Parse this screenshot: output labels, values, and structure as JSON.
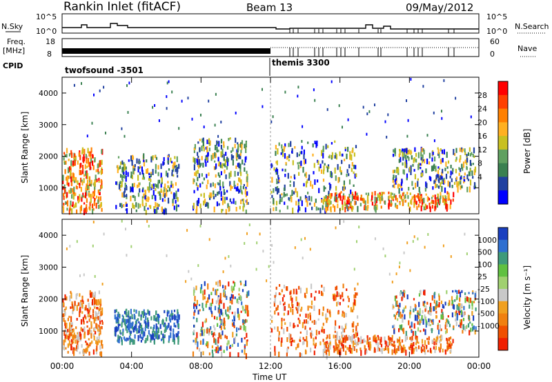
{
  "header": {
    "title": "Rankin Inlet (fitACF)",
    "beam": "Beam 13",
    "date": "09/May/2012"
  },
  "top_panels": {
    "nsky_label": "N.Sky",
    "nsky_ticks": [
      "10^5",
      "10^0"
    ],
    "nsearch_label": "N.Search",
    "nsearch_ticks": [
      "10^5",
      "10^0"
    ],
    "freq_label": "Freq.",
    "freq_unit": "[MHz]",
    "freq_ticks": [
      "18",
      "8"
    ],
    "nave_label": "Nave",
    "nave_ticks": [
      "60",
      "0"
    ],
    "cpid_label": "CPID",
    "cpid_modes": [
      "twofsound -3501",
      "themis 3300"
    ]
  },
  "colorbars": {
    "power": {
      "label": "Power [dB]",
      "ticks": [
        "28",
        "24",
        "20",
        "16",
        "12",
        "8",
        "4"
      ],
      "colors": [
        "#ff0000",
        "#ff4000",
        "#ff8000",
        "#ffb020",
        "#c8c020",
        "#60a060",
        "#3a8050",
        "#2040a0",
        "#0000ff"
      ]
    },
    "velocity": {
      "label": "Velocity [m s⁻¹]",
      "ticks": [
        "1000",
        "500",
        "100",
        "25",
        "-25",
        "-100",
        "-500",
        "-1000"
      ],
      "colors": [
        "#1a3fbf",
        "#2f6fd0",
        "#3f9a7a",
        "#60c040",
        "#a0d070",
        "#c8c8c8",
        "#f0a020",
        "#f08010",
        "#f05000",
        "#f02000"
      ]
    }
  },
  "chart_data": [
    {
      "type": "heatmap",
      "name": "power",
      "ylabel": "Slant Range [km]",
      "xlabel": "Time UT",
      "x_ticks": [
        "00:00",
        "04:00",
        "08:00",
        "12:00",
        "16:00",
        "20:00",
        "00:00"
      ],
      "y_ticks": [
        1000,
        2000,
        3000,
        4000
      ],
      "xlim_hours": [
        0,
        24
      ],
      "ylim_km": [
        180,
        4500
      ],
      "echo_regions": [
        {
          "t0": 0.0,
          "t1": 2.3,
          "r0": 300,
          "r1": 2300,
          "level": "high"
        },
        {
          "t0": 3.0,
          "t1": 6.7,
          "r0": 300,
          "r1": 2100,
          "level": "mid"
        },
        {
          "t0": 7.5,
          "t1": 10.7,
          "r0": 300,
          "r1": 2600,
          "level": "mid"
        },
        {
          "t0": 12.0,
          "t1": 17.0,
          "r0": 300,
          "r1": 2500,
          "level": "mid"
        },
        {
          "t0": 15.0,
          "t1": 22.5,
          "r0": 400,
          "r1": 900,
          "level": "high"
        },
        {
          "t0": 19.0,
          "t1": 23.8,
          "r0": 1000,
          "r1": 2300,
          "level": "mid"
        }
      ]
    },
    {
      "type": "heatmap",
      "name": "velocity",
      "ylabel": "Slant Range [km]",
      "xlabel": "Time UT",
      "x_ticks": [
        "00:00",
        "04:00",
        "08:00",
        "12:00",
        "16:00",
        "20:00",
        "00:00"
      ],
      "y_ticks": [
        1000,
        2000,
        3000,
        4000
      ],
      "xlim_hours": [
        0,
        24
      ],
      "ylim_km": [
        180,
        4500
      ],
      "echo_regions": [
        {
          "t0": 0.0,
          "t1": 2.3,
          "r0": 300,
          "r1": 2300,
          "level": "neg"
        },
        {
          "t0": 3.0,
          "t1": 6.7,
          "r0": 700,
          "r1": 1700,
          "level": "pos"
        },
        {
          "t0": 7.5,
          "t1": 10.7,
          "r0": 300,
          "r1": 2600,
          "level": "mixed"
        },
        {
          "t0": 12.0,
          "t1": 17.0,
          "r0": 300,
          "r1": 2500,
          "level": "neg"
        },
        {
          "t0": 15.0,
          "t1": 22.5,
          "r0": 400,
          "r1": 900,
          "level": "neg"
        },
        {
          "t0": 19.0,
          "t1": 23.8,
          "r0": 1000,
          "r1": 2300,
          "level": "mixed"
        }
      ]
    }
  ]
}
